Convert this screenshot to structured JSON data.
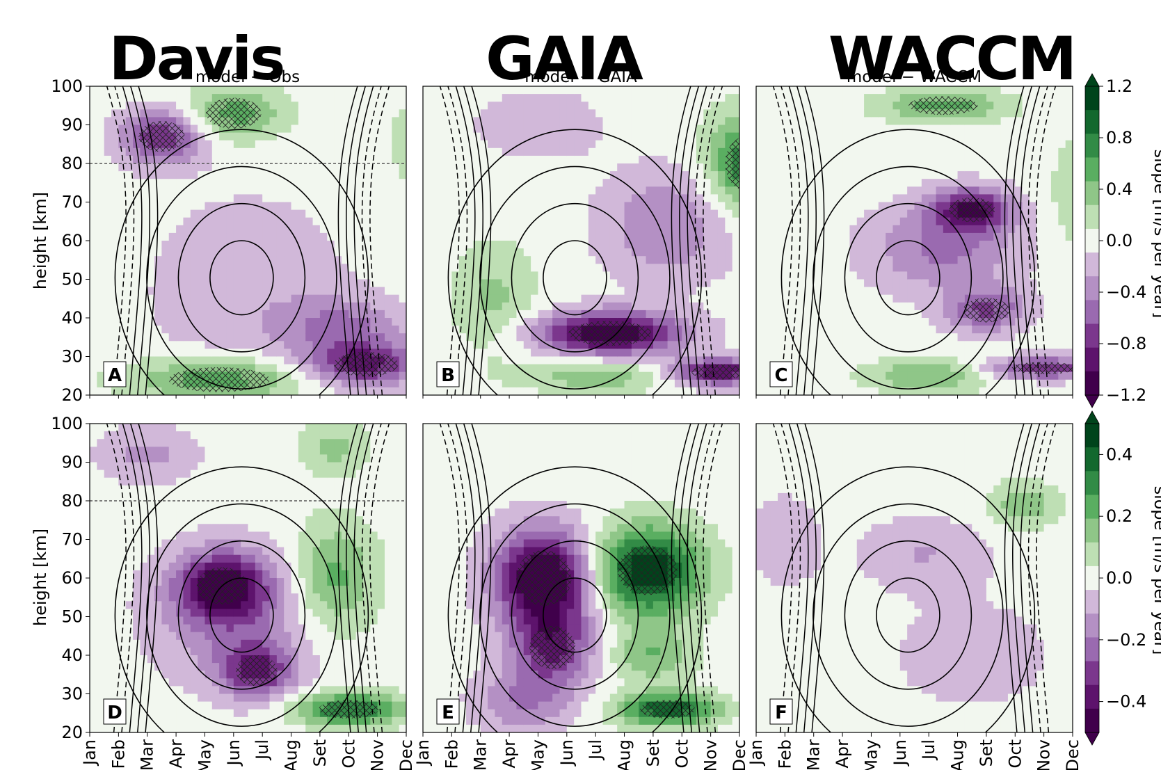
{
  "chart_data": {
    "type": "heatmap",
    "column_titles": [
      "Davis",
      "GAIA",
      "WACCM"
    ],
    "subtitles": [
      "model − Obs",
      "model − GAIA",
      "model − WACCM"
    ],
    "ylabel": "height [km]",
    "colorbar_label": "slope [m/s per year]",
    "x_ticks": [
      "Jan",
      "Feb",
      "Mar",
      "Apr",
      "May",
      "Jun",
      "Jul",
      "Aug",
      "Set",
      "Oct",
      "Nov",
      "Dec"
    ],
    "y_ticks": [
      20,
      30,
      40,
      50,
      60,
      70,
      80,
      90,
      100
    ],
    "ylim": [
      20,
      100
    ],
    "colorbars": [
      {
        "row": "top",
        "ticks": [
          1.2,
          0.8,
          0.4,
          0.0,
          -0.4,
          -0.8,
          -1.2
        ],
        "tick_labels": [
          "1.2",
          "0.8",
          "0.4",
          "0.0",
          "−0.4",
          "−0.8",
          "−1.2"
        ],
        "vmin": -1.2,
        "vmax": 1.2
      },
      {
        "row": "bottom",
        "ticks": [
          0.4,
          0.2,
          0.0,
          -0.2,
          -0.4
        ],
        "tick_labels": [
          "0.4",
          "0.2",
          "0.0",
          "−0.2",
          "−0.4"
        ],
        "vmin": -0.5,
        "vmax": 0.5
      }
    ],
    "panel_labels": [
      "A",
      "B",
      "C",
      "D",
      "E",
      "F"
    ],
    "colors": {
      "neg_strong": "#5c0f6b",
      "neg_mid": "#9a6ab0",
      "neg_weak": "#e6d9ec",
      "neutral": "#f2f7ef",
      "pos_weak": "#cde9c4",
      "pos_mid": "#6fb66c",
      "pos_strong": "#1b6b34"
    },
    "panels": [
      {
        "label": "A",
        "blobs": [
          {
            "m": 5.5,
            "h": 47,
            "sm": 2.5,
            "sh": 18,
            "v": -0.25
          },
          {
            "m": 9.6,
            "h": 28,
            "sm": 1.4,
            "sh": 4,
            "v": -0.95
          },
          {
            "m": 8.8,
            "h": 38,
            "sm": 1.5,
            "sh": 5,
            "v": -0.5
          },
          {
            "m": 4.5,
            "h": 24,
            "sm": 2.2,
            "sh": 4,
            "v": 0.7
          },
          {
            "m": 2.5,
            "h": 87,
            "sm": 1.0,
            "sh": 5,
            "v": -0.9
          },
          {
            "m": 5.0,
            "h": 93,
            "sm": 1.2,
            "sh": 5,
            "v": 0.6
          },
          {
            "m": 11.5,
            "h": 85,
            "sm": 0.6,
            "sh": 6,
            "v": 0.5
          }
        ]
      },
      {
        "label": "B",
        "blobs": [
          {
            "m": 6.5,
            "h": 36,
            "sm": 1.8,
            "sh": 4,
            "v": -1.3
          },
          {
            "m": 8.5,
            "h": 64,
            "sm": 1.6,
            "sh": 10,
            "v": -0.5
          },
          {
            "m": 10.3,
            "h": 26,
            "sm": 1.2,
            "sh": 2.5,
            "v": -1.1
          },
          {
            "m": 11.3,
            "h": 80,
            "sm": 1.0,
            "sh": 9,
            "v": 0.9
          },
          {
            "m": 2.5,
            "h": 45,
            "sm": 1.0,
            "sh": 10,
            "v": 0.35
          },
          {
            "m": 6.0,
            "h": 25,
            "sm": 1.8,
            "sh": 3,
            "v": 0.45
          },
          {
            "m": 4.0,
            "h": 90,
            "sm": 1.5,
            "sh": 6,
            "v": -0.3
          }
        ]
      },
      {
        "label": "C",
        "blobs": [
          {
            "m": 7.5,
            "h": 68,
            "sm": 1.0,
            "sh": 4,
            "v": -1.0
          },
          {
            "m": 6.5,
            "h": 58,
            "sm": 1.8,
            "sh": 8,
            "v": -0.55
          },
          {
            "m": 8.0,
            "h": 42,
            "sm": 1.0,
            "sh": 4,
            "v": -0.7
          },
          {
            "m": 10.0,
            "h": 27,
            "sm": 1.4,
            "sh": 2,
            "v": -0.9
          },
          {
            "m": 6.5,
            "h": 95,
            "sm": 1.5,
            "sh": 3,
            "v": 0.6
          },
          {
            "m": 6.0,
            "h": 25,
            "sm": 1.5,
            "sh": 3,
            "v": 0.5
          },
          {
            "m": 11.5,
            "h": 72,
            "sm": 0.8,
            "sh": 10,
            "v": 0.35
          }
        ]
      },
      {
        "label": "D",
        "blobs": [
          {
            "m": 4.6,
            "h": 58,
            "sm": 1.1,
            "sh": 6,
            "v": -0.45
          },
          {
            "m": 5.8,
            "h": 36,
            "sm": 0.9,
            "sh": 5,
            "v": -0.35
          },
          {
            "m": 5.0,
            "h": 50,
            "sm": 2.0,
            "sh": 12,
            "v": -0.2
          },
          {
            "m": 9.0,
            "h": 26,
            "sm": 1.3,
            "sh": 3,
            "v": 0.4
          },
          {
            "m": 8.5,
            "h": 60,
            "sm": 1.0,
            "sh": 10,
            "v": 0.25
          },
          {
            "m": 2.0,
            "h": 92,
            "sm": 1.2,
            "sh": 5,
            "v": -0.15
          },
          {
            "m": 8.5,
            "h": 94,
            "sm": 0.8,
            "sh": 5,
            "v": 0.15
          }
        ]
      },
      {
        "label": "E",
        "blobs": [
          {
            "m": 4.2,
            "h": 60,
            "sm": 1.2,
            "sh": 9,
            "v": -0.6
          },
          {
            "m": 4.5,
            "h": 42,
            "sm": 1.0,
            "sh": 7,
            "v": -0.35
          },
          {
            "m": 7.8,
            "h": 62,
            "sm": 1.3,
            "sh": 8,
            "v": 0.55
          },
          {
            "m": 8.5,
            "h": 26,
            "sm": 1.2,
            "sh": 3,
            "v": 0.45
          },
          {
            "m": 8.0,
            "h": 40,
            "sm": 1.0,
            "sh": 5,
            "v": 0.2
          },
          {
            "m": 3.5,
            "h": 28,
            "sm": 1.2,
            "sh": 6,
            "v": -0.2
          }
        ]
      },
      {
        "label": "F",
        "blobs": [
          {
            "m": 5.8,
            "h": 67,
            "sm": 1.5,
            "sh": 6,
            "v": -0.12
          },
          {
            "m": 7.5,
            "h": 40,
            "sm": 3.0,
            "sh": 15,
            "v": -0.06
          },
          {
            "m": 9.3,
            "h": 79,
            "sm": 0.8,
            "sh": 4,
            "v": 0.2
          },
          {
            "m": 1.0,
            "h": 70,
            "sm": 1.0,
            "sh": 10,
            "v": -0.08
          },
          {
            "m": 11.8,
            "h": 97,
            "sm": 0.5,
            "sh": 3,
            "v": 0.1
          }
        ]
      }
    ]
  }
}
